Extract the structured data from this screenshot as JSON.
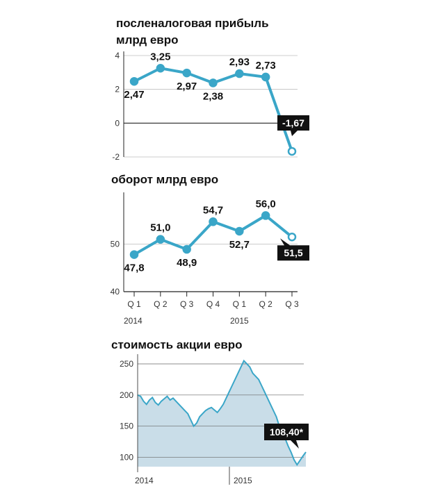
{
  "colors": {
    "line": "#3aa6c8",
    "area": "#c9dde8",
    "axis": "#222222",
    "grid": "#bbbbbb",
    "callout": "#111111"
  },
  "chart_data": [
    {
      "type": "line",
      "title_lines": [
        "посленалоговая прибыль",
        "млрд евро"
      ],
      "ylim": [
        -2,
        4
      ],
      "yticks": [
        "4",
        "2",
        "0",
        "-2"
      ],
      "ytick_values": [
        4,
        2,
        0,
        -2
      ],
      "values": [
        2.47,
        3.25,
        2.97,
        2.38,
        2.93,
        2.73,
        -1.67
      ],
      "labels": [
        "2,47",
        "3,25",
        "2,97",
        "2,38",
        "2,93",
        "2,73",
        "-1,67"
      ],
      "label_pos": [
        "below",
        "above",
        "below",
        "below",
        "above",
        "above",
        "callout"
      ]
    },
    {
      "type": "line",
      "title": "оборот млрд евро",
      "ylim": [
        40,
        60
      ],
      "yticks": [
        "50",
        "40"
      ],
      "ytick_values": [
        50,
        40
      ],
      "categories": [
        "Q 1",
        "Q 2",
        "Q 3",
        "Q 4",
        "Q 1",
        "Q 2",
        "Q 3"
      ],
      "years": [
        "2014",
        "2015"
      ],
      "values": [
        47.8,
        51.0,
        48.9,
        54.7,
        52.7,
        56.0,
        51.5
      ],
      "labels": [
        "47,8",
        "51,0",
        "48,9",
        "54,7",
        "52,7",
        "56,0",
        "51,5"
      ],
      "label_pos": [
        "below",
        "above",
        "below",
        "above",
        "below",
        "above",
        "callout"
      ]
    },
    {
      "type": "area",
      "title": "стоимость акции евро",
      "ylim": [
        85,
        260
      ],
      "yticks": [
        "250",
        "200",
        "150",
        "100"
      ],
      "ytick_values": [
        250,
        200,
        150,
        100
      ],
      "x_labels": [
        "2014",
        "2015"
      ],
      "callout": "108,40*",
      "values": [
        200,
        198,
        190,
        185,
        192,
        196,
        188,
        184,
        190,
        194,
        198,
        192,
        195,
        190,
        185,
        180,
        175,
        170,
        160,
        150,
        155,
        165,
        170,
        175,
        178,
        180,
        176,
        172,
        178,
        185,
        195,
        205,
        215,
        225,
        235,
        245,
        255,
        250,
        245,
        235,
        230,
        225,
        215,
        205,
        195,
        185,
        175,
        165,
        150,
        138,
        130,
        118,
        108,
        96,
        88,
        95,
        102,
        108.4
      ]
    }
  ]
}
